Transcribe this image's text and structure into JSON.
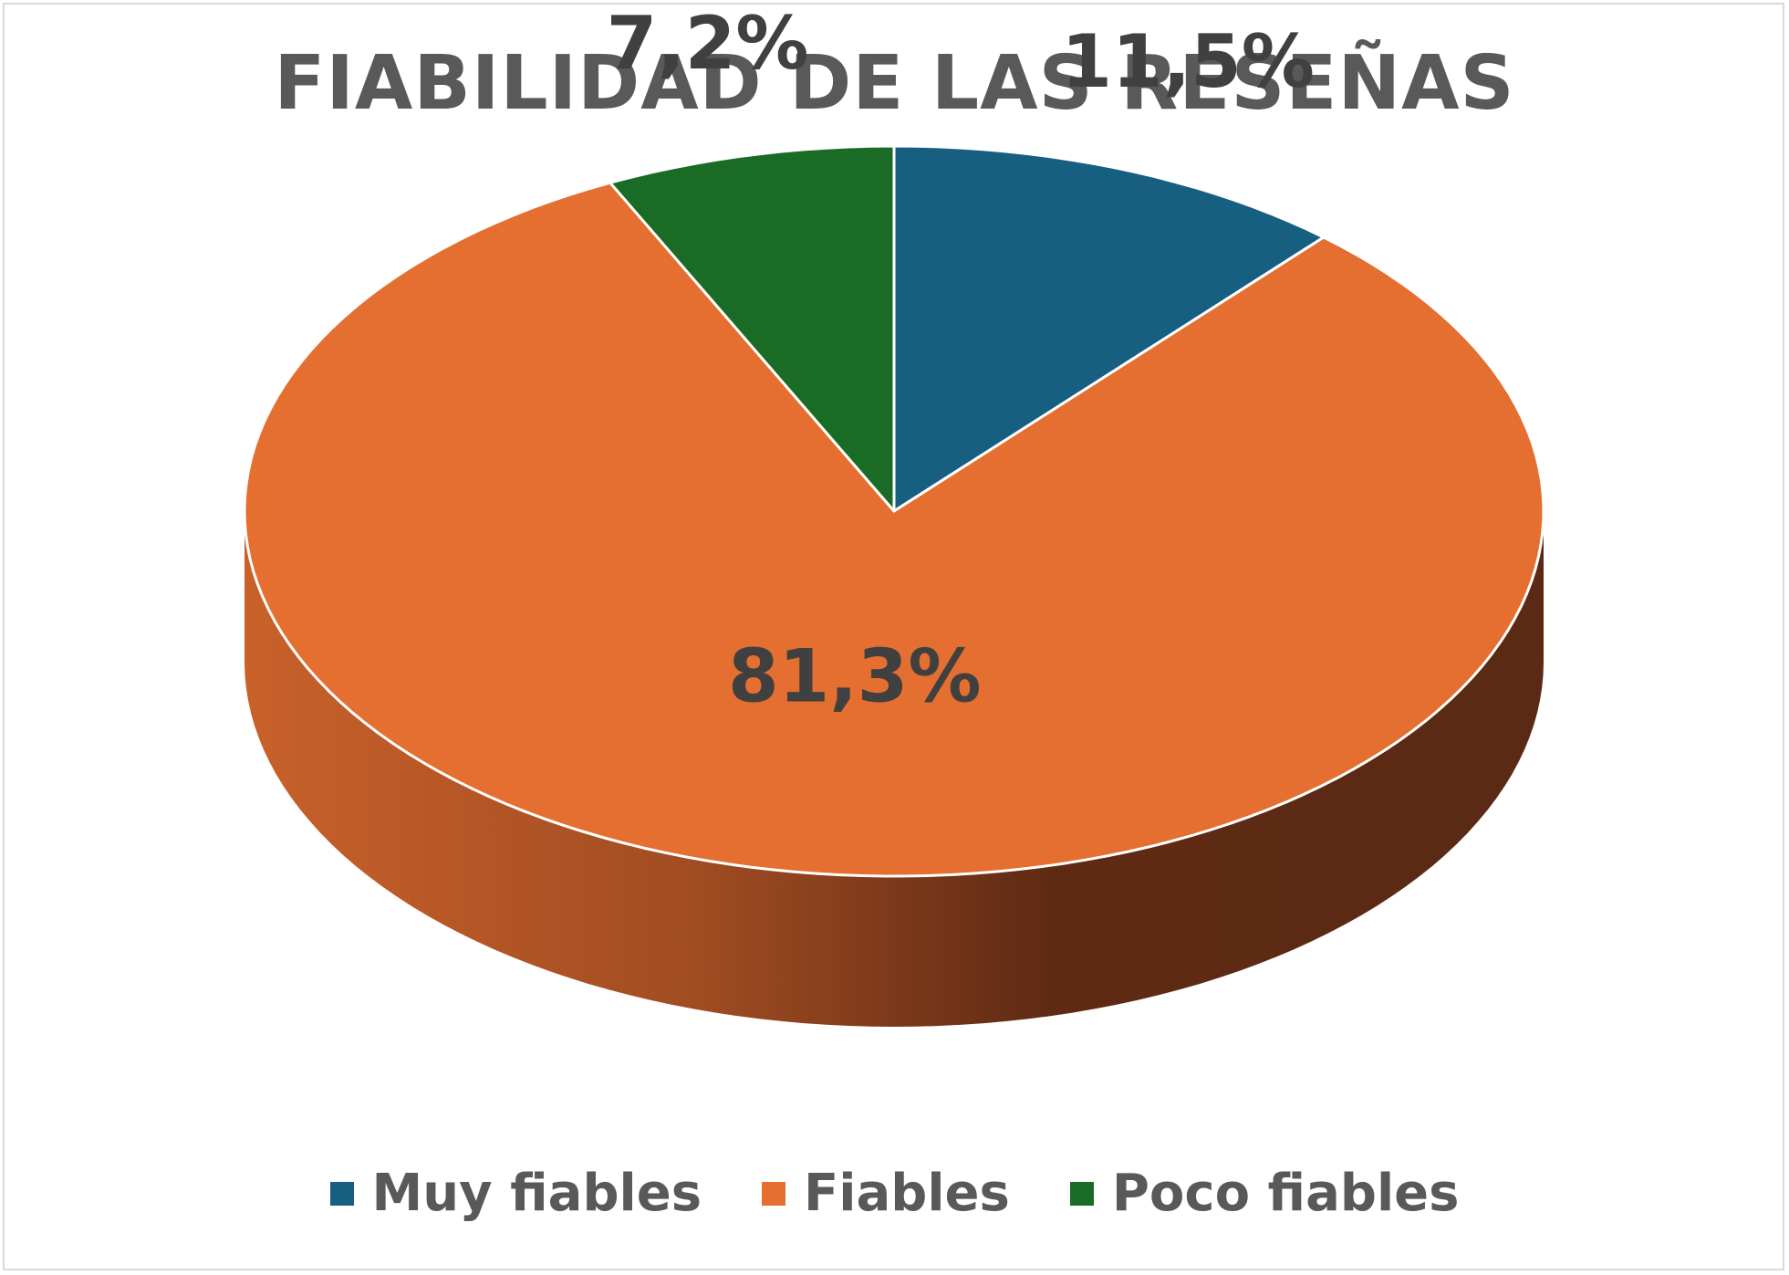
{
  "chart_data": {
    "type": "pie",
    "title": "FIABILIDAD DE LAS RESEÑAS",
    "categories": [
      "Muy fiables",
      "Fiables",
      "Poco fiables"
    ],
    "values": [
      11.5,
      81.3,
      7.2
    ],
    "labels": [
      "11,5%",
      "81,3%",
      "7,2%"
    ],
    "colors": [
      "#175f80",
      "#e46f30",
      "#1a6b25"
    ],
    "legend_position": "bottom",
    "style": "3d"
  }
}
